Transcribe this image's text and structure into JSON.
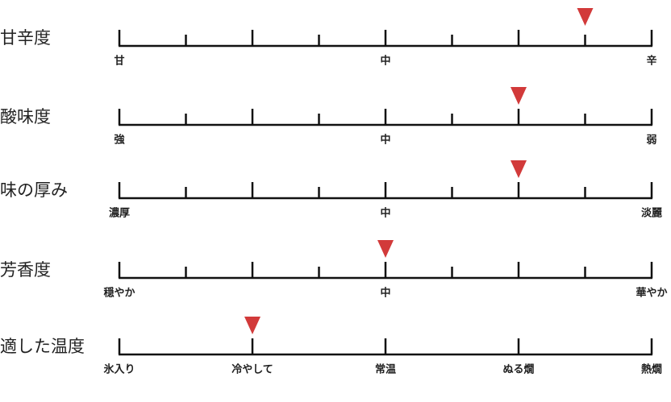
{
  "rows": [
    {
      "title": "甘辛度",
      "range": [
        0,
        8
      ],
      "marker": 7,
      "labels": [
        {
          "value": 0,
          "label": "甘"
        },
        {
          "value": 4,
          "label": "中"
        },
        {
          "value": 8,
          "label": "辛"
        }
      ]
    },
    {
      "title": "酸味度",
      "range": [
        0,
        8
      ],
      "marker": 6,
      "labels": [
        {
          "value": 0,
          "label": "強"
        },
        {
          "value": 4,
          "label": "中"
        },
        {
          "value": 8,
          "label": "弱"
        }
      ]
    },
    {
      "title": "味の厚み",
      "range": [
        0,
        8
      ],
      "marker": 6,
      "labels": [
        {
          "value": 0,
          "label": "濃厚"
        },
        {
          "value": 4,
          "label": "中"
        },
        {
          "value": 8,
          "label": "淡麗"
        }
      ]
    },
    {
      "title": "芳香度",
      "range": [
        0,
        8
      ],
      "marker": 4,
      "labels": [
        {
          "value": 0,
          "label": "穏やか"
        },
        {
          "value": 4,
          "label": "中"
        },
        {
          "value": 8,
          "label": "華やか"
        }
      ]
    },
    {
      "title": "適した温度",
      "range": [
        0,
        4
      ],
      "marker": 1,
      "labels": [
        {
          "value": 0,
          "label": "氷入り"
        },
        {
          "value": 1,
          "label": "冷やして"
        },
        {
          "value": 2,
          "label": "常温"
        },
        {
          "value": 3,
          "label": "ぬる燗"
        },
        {
          "value": 4,
          "label": "熱燗"
        }
      ]
    }
  ]
}
